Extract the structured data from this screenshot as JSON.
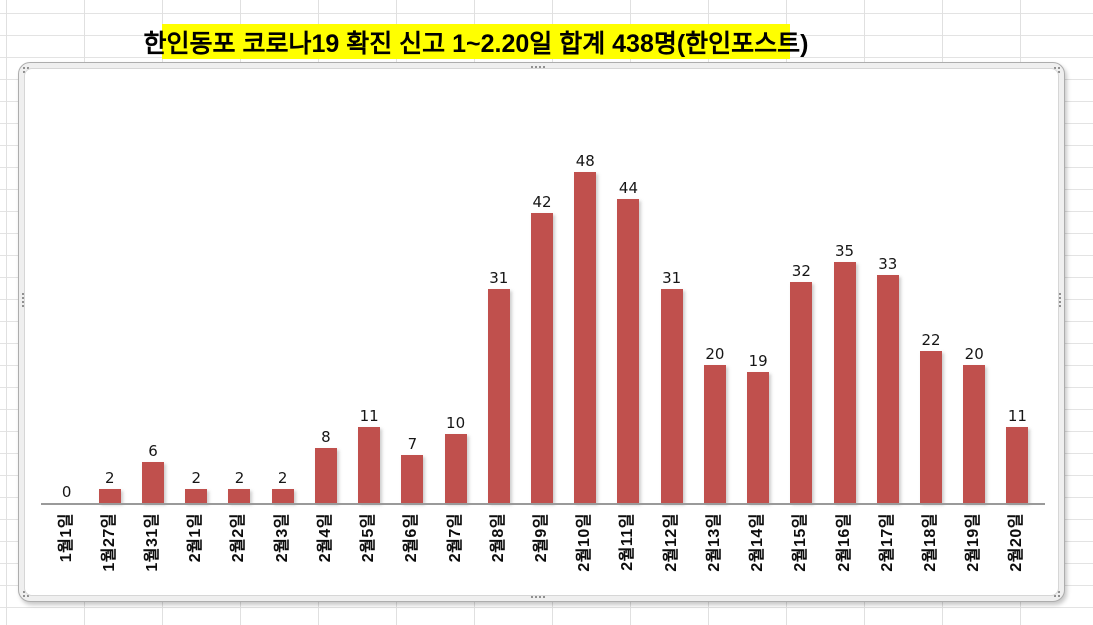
{
  "title": {
    "text": "한인동포 코로나19 확진 신고 1~2.20일 합계 438명(한인포스트)",
    "highlight_color": "#FFFF00",
    "text_color": "#000000"
  },
  "chart_data": {
    "type": "bar",
    "title": "",
    "xlabel": "",
    "ylabel": "",
    "categories": [
      "1월1일",
      "1월27일",
      "1월31일",
      "2월1일",
      "2월2일",
      "2월3일",
      "2월4일",
      "2월5일",
      "2월6일",
      "2월7일",
      "2월8일",
      "2월9일",
      "2월10일",
      "2월11일",
      "2월12일",
      "2월13일",
      "2월14일",
      "2월15일",
      "2월16일",
      "2월17일",
      "2월18일",
      "2월19일",
      "2월20일"
    ],
    "values": [
      0,
      2,
      6,
      2,
      2,
      2,
      8,
      11,
      7,
      10,
      31,
      42,
      48,
      44,
      31,
      20,
      19,
      32,
      35,
      33,
      22,
      20,
      11
    ],
    "data_labels": true,
    "bar_color": "#C0504D",
    "axis_color": "#9A9A9A",
    "ylim": [
      0,
      50
    ],
    "gridlines": false,
    "legend_position": "none",
    "x_tick_rotation": -90
  },
  "spreadsheet": {
    "gridline_color": "#E0E0E0"
  }
}
